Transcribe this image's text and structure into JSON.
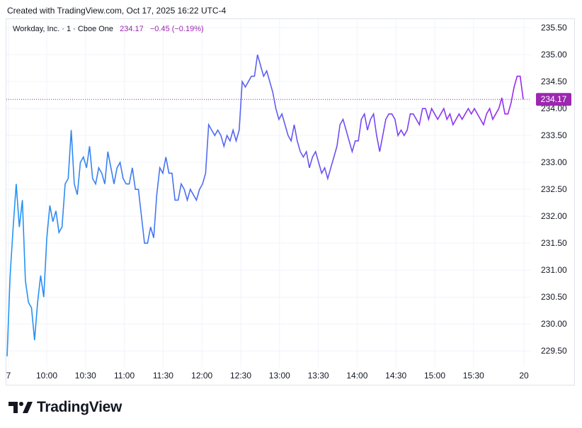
{
  "header": {
    "created_text": "Created with TradingView.com, Oct 17, 2025 16:22 UTC-4"
  },
  "legend": {
    "symbol_text": "Workday, Inc. · 1 · Cboe One",
    "last": "234.17",
    "change": "−0.45 (−0.19%)"
  },
  "brand": {
    "name": "TradingView"
  },
  "price_tag": "234.17",
  "colors": {
    "start": "#2196f3",
    "end": "#9c27f0",
    "price_line": "#9c27b0",
    "grid": "#f0f3fa"
  },
  "chart_data": {
    "type": "line",
    "title": "Workday, Inc. · 1 · Cboe One",
    "xlabel": "",
    "ylabel": "",
    "ylim": [
      229.2,
      235.66
    ],
    "last_price": 234.17,
    "x_ticks": [
      "7",
      "10:00",
      "10:30",
      "11:00",
      "11:30",
      "12:00",
      "12:30",
      "13:00",
      "13:30",
      "14:00",
      "14:30",
      "15:00",
      "15:30",
      "20"
    ],
    "y_ticks": [
      "229.50",
      "230.00",
      "230.50",
      "231.00",
      "231.50",
      "232.00",
      "232.50",
      "233.00",
      "233.50",
      "234.00",
      "234.50",
      "235.00",
      "235.50"
    ],
    "series": [
      {
        "values": [
          229.4,
          230.9,
          231.8,
          232.6,
          231.8,
          232.3,
          230.8,
          230.4,
          230.3,
          229.7,
          230.4,
          230.9,
          230.5,
          231.6,
          232.2,
          231.9,
          232.1,
          231.7,
          231.8,
          232.6,
          232.7,
          233.6,
          232.6,
          232.4,
          233.0,
          233.1,
          232.9,
          233.3,
          232.7,
          232.6,
          232.9,
          232.8,
          232.6,
          233.2,
          232.9,
          232.6,
          232.9,
          233.0,
          232.7,
          232.6,
          232.6,
          232.9,
          232.5,
          232.5,
          232.0,
          231.5,
          231.5,
          231.8,
          231.6,
          232.4,
          232.9,
          232.8,
          233.1,
          232.8,
          232.8,
          232.3,
          232.3,
          232.6,
          232.5,
          232.3,
          232.5,
          232.4,
          232.3,
          232.5,
          232.6,
          232.8,
          233.7,
          233.6,
          233.5,
          233.6,
          233.5,
          233.3,
          233.5,
          233.4,
          233.6,
          233.4,
          233.6,
          234.5,
          234.4,
          234.5,
          234.6,
          234.6,
          235.0,
          234.8,
          234.6,
          234.7,
          234.5,
          234.3,
          234.0,
          233.8,
          233.9,
          233.7,
          233.5,
          233.4,
          233.7,
          233.4,
          233.2,
          233.1,
          233.2,
          232.9,
          233.1,
          233.2,
          233.0,
          232.8,
          232.9,
          232.7,
          232.9,
          233.1,
          233.3,
          233.7,
          233.8,
          233.6,
          233.4,
          233.2,
          233.4,
          233.4,
          233.8,
          233.9,
          233.6,
          233.8,
          233.9,
          233.5,
          233.2,
          233.5,
          233.8,
          233.9,
          233.9,
          233.8,
          233.5,
          233.6,
          233.5,
          233.6,
          233.9,
          233.9,
          233.8,
          233.7,
          234.0,
          234.0,
          233.8,
          234.0,
          233.9,
          233.8,
          233.9,
          234.0,
          233.8,
          233.9,
          233.7,
          233.8,
          233.9,
          233.8,
          233.9,
          234.0,
          233.9,
          234.0,
          233.9,
          233.8,
          233.7,
          233.9,
          234.0,
          233.8,
          233.9,
          234.0,
          234.2,
          233.9,
          233.9,
          234.1,
          234.4,
          234.6,
          234.6,
          234.17
        ]
      }
    ],
    "grid": true,
    "legend": "none"
  }
}
